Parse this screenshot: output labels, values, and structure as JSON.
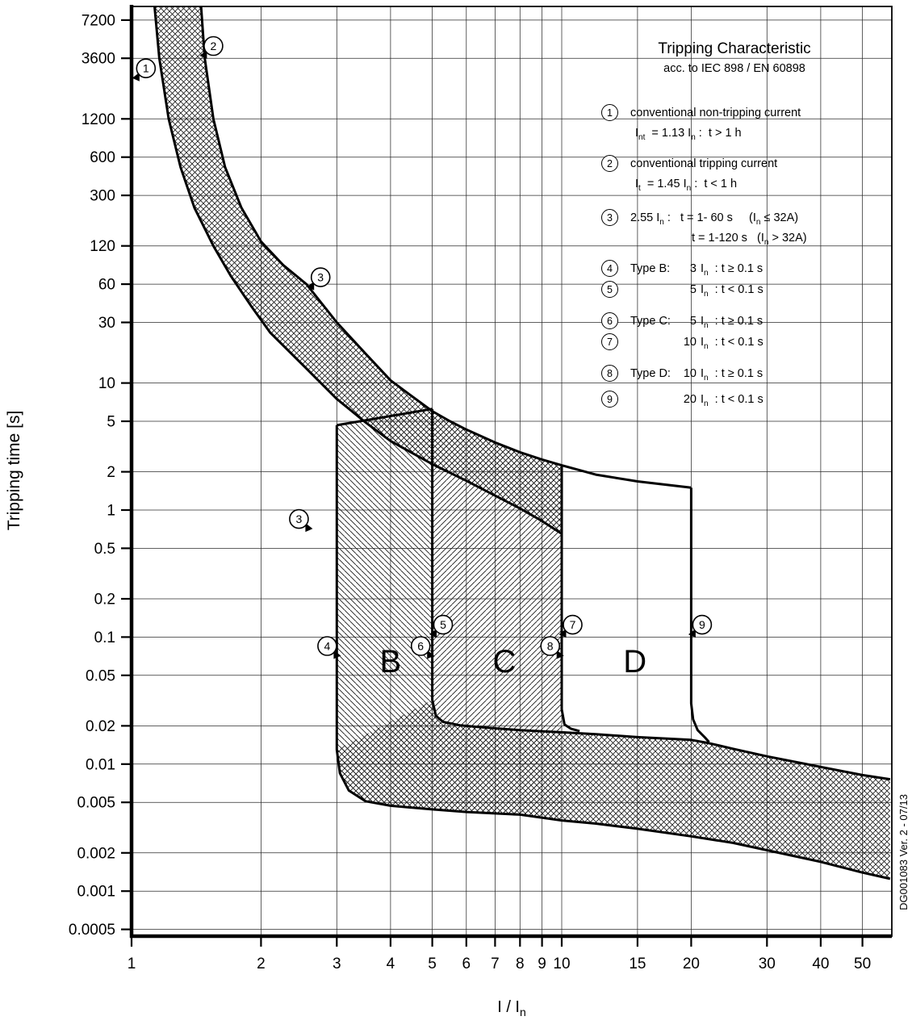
{
  "title": {
    "main": "Tripping Characteristic",
    "sub": "acc. to IEC 898 / EN 60898"
  },
  "side_note": "DG001083 Ver. 2 - 07/13",
  "axes": {
    "x": {
      "label_main": "I / I",
      "label_sub": "n",
      "ticks": [
        1,
        2,
        3,
        4,
        5,
        6,
        7,
        8,
        9,
        10,
        15,
        20,
        30,
        40,
        50
      ]
    },
    "y": {
      "label": "Tripping time [s]",
      "ticks": [
        "7200",
        "3600",
        "1200",
        "600",
        "300",
        "120",
        "60",
        "30",
        "10",
        "5",
        "2",
        "1",
        "0.5",
        "0.2",
        "0.1",
        "0.05",
        "0.02",
        "0.01",
        "0.005",
        "0.002",
        "0.001",
        "0.0005"
      ]
    }
  },
  "legend": {
    "items": [
      {
        "num": "1",
        "type": "block",
        "lines": [
          "conventional non-tripping current",
          "I~nt~  = 1.13 I~n~ :  t > 1 h"
        ]
      },
      {
        "num": "2",
        "type": "block",
        "lines": [
          "I~t~  = 1.45 I~n~ :  t < 1 h",
          " "
        ],
        "line0": "conventional tripping current"
      },
      {
        "num": "3",
        "type": "block",
        "lines": [
          "2.55 I~n~ :   t = 1- 60 s     (I~n~ ≤ 32A)",
          "t = 1-120 s   (I~n~ > 32A)"
        ],
        "indent2": 122
      },
      {
        "num": "4",
        "type": "row",
        "label": "Type B:",
        "mult": "3",
        "rest": "I~n~  : t ≥ 0.1 s"
      },
      {
        "num": "5",
        "type": "row",
        "label": "",
        "mult": "5",
        "rest": "I~n~  : t < 0.1 s"
      },
      {
        "num": "6",
        "type": "row",
        "label": "Type C:",
        "mult": "5",
        "rest": "I~n~  : t ≥ 0.1 s"
      },
      {
        "num": "7",
        "type": "row",
        "label": "",
        "mult": "10",
        "rest": "I~n~  : t < 0.1 s"
      },
      {
        "num": "8",
        "type": "row",
        "label": "Type D:",
        "mult": "10",
        "rest": "I~n~  : t ≥ 0.1 s"
      },
      {
        "num": "9",
        "type": "row",
        "label": "",
        "mult": "20",
        "rest": "I~n~  : t < 0.1 s"
      }
    ]
  },
  "chart_data": {
    "type": "line",
    "scale": "log-log",
    "x_range": [
      1,
      58
    ],
    "t_range": [
      0.0005,
      9500
    ],
    "grid": true,
    "series": [
      {
        "name": "thermal_upper",
        "desc": "conventional tripping current boundary (1.45 In)",
        "points": [
          [
            1.45,
            9500
          ],
          [
            1.48,
            3600
          ],
          [
            1.55,
            1200
          ],
          [
            1.65,
            500
          ],
          [
            1.8,
            240
          ],
          [
            2.0,
            130
          ],
          [
            2.25,
            85
          ],
          [
            2.55,
            60
          ],
          [
            3.0,
            30
          ],
          [
            3.5,
            17
          ],
          [
            4.0,
            10.5
          ],
          [
            4.5,
            7.8
          ],
          [
            5.0,
            6.0
          ],
          [
            5.5,
            5.0
          ],
          [
            6,
            4.3
          ],
          [
            7,
            3.4
          ],
          [
            8,
            2.85
          ],
          [
            9,
            2.5
          ],
          [
            10,
            2.25
          ],
          [
            12,
            1.9
          ],
          [
            15,
            1.68
          ],
          [
            17,
            1.6
          ],
          [
            20,
            1.5
          ]
        ]
      },
      {
        "name": "thermal_lower",
        "desc": "conventional non-tripping current boundary (1.13 In)",
        "points": [
          [
            1.13,
            9500
          ],
          [
            1.16,
            3600
          ],
          [
            1.22,
            1200
          ],
          [
            1.3,
            500
          ],
          [
            1.4,
            240
          ],
          [
            1.55,
            120
          ],
          [
            1.7,
            70
          ],
          [
            1.9,
            40
          ],
          [
            2.1,
            25
          ],
          [
            2.55,
            13
          ],
          [
            3.0,
            7.5
          ],
          [
            3.5,
            4.9
          ],
          [
            4.0,
            3.5
          ],
          [
            4.5,
            2.8
          ],
          [
            5.0,
            2.3
          ],
          [
            6,
            1.7
          ],
          [
            7,
            1.3
          ],
          [
            8,
            1.03
          ],
          [
            9,
            0.82
          ],
          [
            10,
            0.65
          ]
        ]
      },
      {
        "name": "b_left_bottom",
        "desc": "Type B lower limit 3 In + instantaneous lower curve",
        "points": [
          [
            3,
            4.65
          ],
          [
            3,
            0.013
          ],
          [
            3.05,
            0.0085
          ],
          [
            3.2,
            0.0062
          ],
          [
            3.5,
            0.0051
          ],
          [
            4,
            0.0047
          ],
          [
            5,
            0.0044
          ],
          [
            6,
            0.0042
          ],
          [
            8,
            0.004
          ],
          [
            10,
            0.0036
          ],
          [
            12,
            0.0034
          ],
          [
            15,
            0.0031
          ],
          [
            20,
            0.0027
          ],
          [
            25,
            0.0024
          ],
          [
            30,
            0.0021
          ],
          [
            40,
            0.0017
          ],
          [
            50,
            0.0014
          ],
          [
            58,
            0.00125
          ]
        ]
      },
      {
        "name": "b_top",
        "desc": "top edge of type B magnetic zone",
        "points": [
          [
            3,
            4.65
          ],
          [
            5,
            6.25
          ]
        ]
      },
      {
        "name": "c_left_band_top",
        "desc": "Type C lower limit 5 In + instantaneous upper curve",
        "points": [
          [
            5,
            6.25
          ],
          [
            5,
            0.032
          ],
          [
            5.1,
            0.024
          ],
          [
            5.3,
            0.0215
          ],
          [
            5.8,
            0.0202
          ],
          [
            6.5,
            0.0195
          ],
          [
            8,
            0.0185
          ],
          [
            10,
            0.0178
          ],
          [
            12,
            0.0172
          ],
          [
            15,
            0.0163
          ],
          [
            20,
            0.0155
          ],
          [
            22,
            0.0146
          ],
          [
            25,
            0.0132
          ],
          [
            30,
            0.0115
          ],
          [
            40,
            0.0095
          ],
          [
            50,
            0.0082
          ],
          [
            58,
            0.0076
          ]
        ]
      },
      {
        "name": "d_left_hook",
        "desc": "Type D lower limit 10 In",
        "points": [
          [
            10,
            2.25
          ],
          [
            10,
            0.027
          ],
          [
            10.15,
            0.0205
          ],
          [
            10.5,
            0.019
          ],
          [
            11,
            0.0182
          ]
        ]
      },
      {
        "name": "d_right_hook",
        "desc": "Type D upper limit 20 In",
        "points": [
          [
            20,
            1.5
          ],
          [
            20,
            0.03
          ],
          [
            20.2,
            0.0225
          ],
          [
            20.7,
            0.0185
          ],
          [
            21.6,
            0.016
          ],
          [
            22,
            0.0149
          ]
        ]
      }
    ],
    "regions": [
      {
        "name": "region-b-fill",
        "hatch": "hb",
        "points": [
          [
            3,
            4.65
          ],
          [
            5,
            6.25
          ],
          [
            5,
            0.0044
          ],
          [
            4,
            0.0047
          ],
          [
            3.5,
            0.0051
          ],
          [
            3.2,
            0.0062
          ],
          [
            3.05,
            0.0085
          ],
          [
            3,
            0.013
          ]
        ]
      },
      {
        "name": "region-c-fill",
        "hatch": "hc",
        "points": [
          [
            5,
            6.0
          ],
          [
            5.5,
            5.0
          ],
          [
            6,
            4.3
          ],
          [
            7,
            3.4
          ],
          [
            8,
            2.85
          ],
          [
            9,
            2.5
          ],
          [
            10,
            2.25
          ],
          [
            10,
            0.0036
          ],
          [
            8,
            0.004
          ],
          [
            6,
            0.0042
          ],
          [
            5,
            0.0044
          ]
        ]
      },
      {
        "name": "instantaneous-band-fill",
        "hatch": "hx",
        "points": [
          [
            5,
            0.032
          ],
          [
            5.1,
            0.024
          ],
          [
            5.3,
            0.0215
          ],
          [
            5.8,
            0.0202
          ],
          [
            6.5,
            0.0195
          ],
          [
            8,
            0.0185
          ],
          [
            10,
            0.0178
          ],
          [
            12,
            0.0172
          ],
          [
            15,
            0.0163
          ],
          [
            20,
            0.0155
          ],
          [
            22,
            0.0146
          ],
          [
            25,
            0.0132
          ],
          [
            30,
            0.0115
          ],
          [
            40,
            0.0095
          ],
          [
            50,
            0.0082
          ],
          [
            58,
            0.0076
          ],
          [
            58,
            0.00125
          ],
          [
            50,
            0.0014
          ],
          [
            40,
            0.0017
          ],
          [
            30,
            0.0021
          ],
          [
            25,
            0.0024
          ],
          [
            20,
            0.0027
          ],
          [
            15,
            0.0031
          ],
          [
            12,
            0.0034
          ],
          [
            10,
            0.0036
          ],
          [
            8,
            0.004
          ],
          [
            6,
            0.0042
          ],
          [
            5,
            0.0044
          ],
          [
            4,
            0.0047
          ],
          [
            3.5,
            0.0051
          ],
          [
            3.2,
            0.0062
          ],
          [
            3.05,
            0.0085
          ],
          [
            3,
            0.013
          ]
        ]
      }
    ],
    "region_labels": [
      {
        "text": "B",
        "x": 4.0,
        "t": 0.066
      },
      {
        "text": "C",
        "x": 7.36,
        "t": 0.066
      },
      {
        "text": "D",
        "x": 14.8,
        "t": 0.066
      }
    ],
    "annotations": [
      {
        "n": "1",
        "x": 1.08,
        "t": 3000,
        "wedge": "ll"
      },
      {
        "n": "2",
        "x": 1.55,
        "t": 4500,
        "wedge": "ll"
      },
      {
        "n": "3",
        "x": 2.75,
        "t": 68,
        "wedge": "ll"
      },
      {
        "n": "3",
        "x": 2.45,
        "t": 0.85,
        "wedge": "lr"
      },
      {
        "n": "4",
        "x": 2.85,
        "t": 0.085,
        "wedge": "lr"
      },
      {
        "n": "5",
        "x": 5.3,
        "t": 0.125,
        "wedge": "ll"
      },
      {
        "n": "6",
        "x": 4.7,
        "t": 0.085,
        "wedge": "lr"
      },
      {
        "n": "7",
        "x": 10.6,
        "t": 0.125,
        "wedge": "ll"
      },
      {
        "n": "8",
        "x": 9.4,
        "t": 0.085,
        "wedge": "lr"
      },
      {
        "n": "9",
        "x": 21.2,
        "t": 0.125,
        "wedge": "ll"
      }
    ]
  }
}
